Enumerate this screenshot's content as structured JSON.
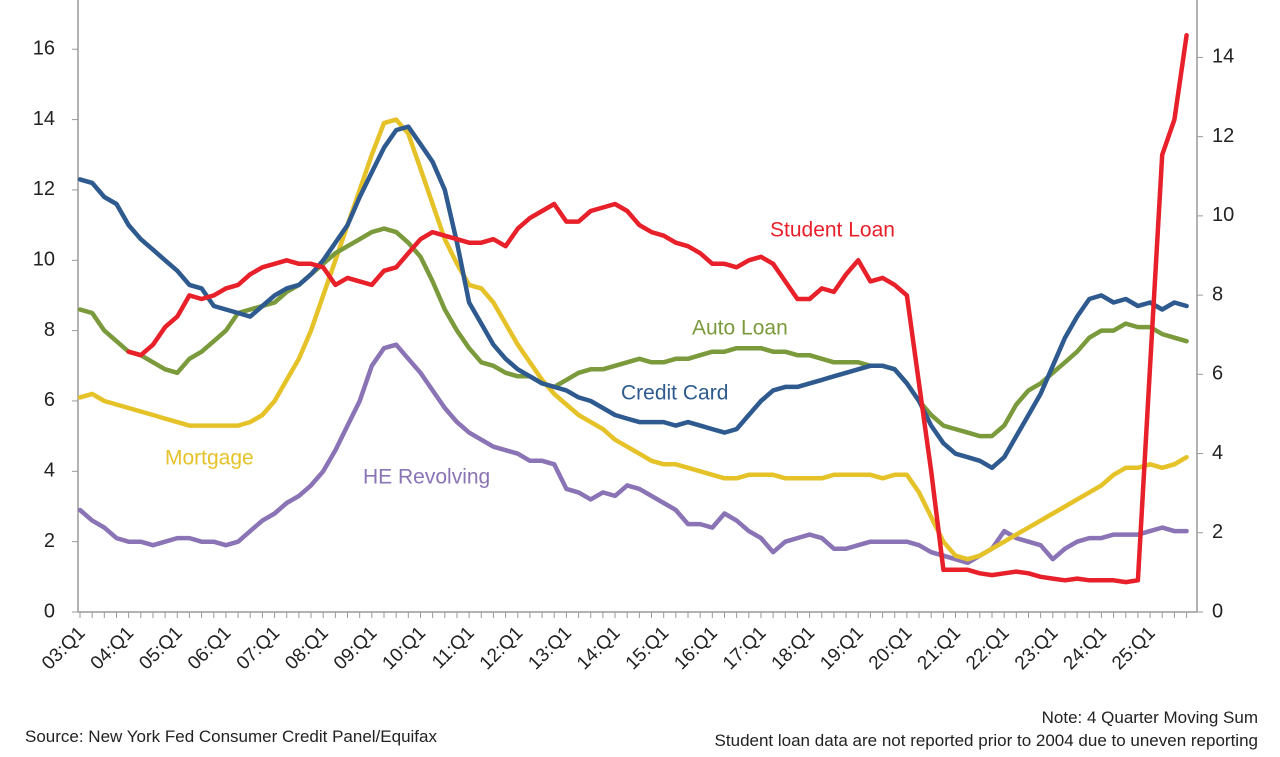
{
  "chart_data": {
    "type": "line",
    "categories": [
      "03:Q1",
      null,
      null,
      null,
      "04:Q1",
      null,
      null,
      null,
      "05:Q1",
      null,
      null,
      null,
      "06:Q1",
      null,
      null,
      null,
      "07:Q1",
      null,
      null,
      null,
      "08:Q1",
      null,
      null,
      null,
      "09:Q1",
      null,
      null,
      null,
      "10:Q1",
      null,
      null,
      null,
      "11:Q1",
      null,
      null,
      null,
      "12:Q1",
      null,
      null,
      null,
      "13:Q1",
      null,
      null,
      null,
      "14:Q1",
      null,
      null,
      null,
      "15:Q1",
      null,
      null,
      null,
      "16:Q1",
      null,
      null,
      null,
      "17:Q1",
      null,
      null,
      null,
      "18:Q1",
      null,
      null,
      null,
      "19:Q1",
      null,
      null,
      null,
      "20:Q1",
      null,
      null,
      null,
      "21:Q1",
      null,
      null,
      null,
      "22:Q1",
      null,
      null,
      null,
      "23:Q1",
      null,
      null,
      null,
      "24:Q1",
      null,
      null,
      null,
      "25:Q1",
      null,
      null,
      null
    ],
    "series": [
      {
        "name": "Student Loan",
        "color": "#e8202a",
        "values": [
          null,
          null,
          null,
          null,
          7.4,
          7.3,
          7.6,
          8.1,
          8.4,
          9.0,
          8.9,
          9.0,
          9.2,
          9.3,
          9.6,
          9.8,
          9.9,
          10.0,
          9.9,
          9.9,
          9.8,
          9.3,
          9.5,
          9.4,
          9.3,
          9.7,
          9.8,
          10.2,
          10.6,
          10.8,
          10.7,
          10.6,
          10.5,
          10.5,
          10.6,
          10.4,
          10.9,
          11.2,
          11.4,
          11.6,
          11.1,
          11.1,
          11.4,
          11.5,
          11.6,
          11.4,
          11.0,
          10.8,
          10.7,
          10.5,
          10.4,
          10.2,
          9.9,
          9.9,
          9.8,
          10.0,
          10.1,
          9.9,
          9.4,
          8.9,
          8.9,
          9.2,
          9.1,
          9.6,
          10.0,
          9.4,
          9.5,
          9.3,
          9.0,
          6.5,
          4.0,
          1.2,
          1.2,
          1.2,
          1.1,
          1.05,
          1.1,
          1.15,
          1.1,
          1.0,
          0.95,
          0.9,
          0.95,
          0.9,
          0.9,
          0.9,
          0.85,
          0.9,
          7.0,
          13.0,
          14.0,
          16.4
        ]
      },
      {
        "name": "Auto Loan",
        "color": "#7a9a3c",
        "values": [
          8.6,
          8.5,
          8.0,
          7.7,
          7.4,
          7.3,
          7.1,
          6.9,
          6.8,
          7.2,
          7.4,
          7.7,
          8.0,
          8.5,
          8.6,
          8.7,
          8.8,
          9.1,
          9.3,
          9.6,
          9.9,
          10.2,
          10.4,
          10.6,
          10.8,
          10.9,
          10.8,
          10.5,
          10.1,
          9.4,
          8.6,
          8.0,
          7.5,
          7.1,
          7.0,
          6.8,
          6.7,
          6.7,
          6.5,
          6.4,
          6.6,
          6.8,
          6.9,
          6.9,
          7.0,
          7.1,
          7.2,
          7.1,
          7.1,
          7.2,
          7.2,
          7.3,
          7.4,
          7.4,
          7.5,
          7.5,
          7.5,
          7.4,
          7.4,
          7.3,
          7.3,
          7.2,
          7.1,
          7.1,
          7.1,
          7.0,
          7.0,
          6.9,
          6.5,
          6.0,
          5.6,
          5.3,
          5.2,
          5.1,
          5.0,
          5.0,
          5.3,
          5.9,
          6.3,
          6.5,
          6.8,
          7.1,
          7.4,
          7.8,
          8.0,
          8.0,
          8.2,
          8.1,
          8.1,
          7.9,
          7.8,
          7.7
        ]
      },
      {
        "name": "Credit Card",
        "color": "#2e5a8f",
        "values": [
          12.3,
          12.2,
          11.8,
          11.6,
          11.0,
          10.6,
          10.3,
          10.0,
          9.7,
          9.3,
          9.2,
          8.7,
          8.6,
          8.5,
          8.4,
          8.7,
          9.0,
          9.2,
          9.3,
          9.6,
          10.0,
          10.5,
          11.0,
          11.8,
          12.5,
          13.2,
          13.7,
          13.8,
          13.3,
          12.8,
          12.0,
          10.5,
          8.8,
          8.2,
          7.6,
          7.2,
          6.9,
          6.7,
          6.5,
          6.4,
          6.3,
          6.1,
          6.0,
          5.8,
          5.6,
          5.5,
          5.4,
          5.4,
          5.4,
          5.3,
          5.4,
          5.3,
          5.2,
          5.1,
          5.2,
          5.6,
          6.0,
          6.3,
          6.4,
          6.4,
          6.5,
          6.6,
          6.7,
          6.8,
          6.9,
          7.0,
          7.0,
          6.9,
          6.5,
          6.0,
          5.3,
          4.8,
          4.5,
          4.4,
          4.3,
          4.1,
          4.4,
          5.0,
          5.6,
          6.2,
          7.0,
          7.8,
          8.4,
          8.9,
          9.0,
          8.8,
          8.9,
          8.7,
          8.8,
          8.6,
          8.8,
          8.7
        ]
      },
      {
        "name": "Mortgage",
        "color": "#e6c229",
        "values": [
          6.1,
          6.2,
          6.0,
          5.9,
          5.8,
          5.7,
          5.6,
          5.5,
          5.4,
          5.3,
          5.3,
          5.3,
          5.3,
          5.3,
          5.4,
          5.6,
          6.0,
          6.6,
          7.2,
          8.0,
          9.0,
          10.0,
          11.0,
          12.0,
          13.0,
          13.9,
          14.0,
          13.6,
          12.6,
          11.6,
          10.6,
          9.9,
          9.3,
          9.2,
          8.8,
          8.2,
          7.6,
          7.1,
          6.6,
          6.2,
          5.9,
          5.6,
          5.4,
          5.2,
          4.9,
          4.7,
          4.5,
          4.3,
          4.2,
          4.2,
          4.1,
          4.0,
          3.9,
          3.8,
          3.8,
          3.9,
          3.9,
          3.9,
          3.8,
          3.8,
          3.8,
          3.8,
          3.9,
          3.9,
          3.9,
          3.9,
          3.8,
          3.9,
          3.9,
          3.4,
          2.7,
          2.0,
          1.6,
          1.5,
          1.6,
          1.8,
          2.0,
          2.2,
          2.4,
          2.6,
          2.8,
          3.0,
          3.2,
          3.4,
          3.6,
          3.9,
          4.1,
          4.1,
          4.2,
          4.1,
          4.2,
          4.4
        ]
      },
      {
        "name": "HE Revolving",
        "color": "#8a74b5",
        "values": [
          2.9,
          2.6,
          2.4,
          2.1,
          2.0,
          2.0,
          1.9,
          2.0,
          2.1,
          2.1,
          2.0,
          2.0,
          1.9,
          2.0,
          2.3,
          2.6,
          2.8,
          3.1,
          3.3,
          3.6,
          4.0,
          4.6,
          5.3,
          6.0,
          7.0,
          7.5,
          7.6,
          7.2,
          6.8,
          6.3,
          5.8,
          5.4,
          5.1,
          4.9,
          4.7,
          4.6,
          4.5,
          4.3,
          4.3,
          4.2,
          3.5,
          3.4,
          3.2,
          3.4,
          3.3,
          3.6,
          3.5,
          3.3,
          3.1,
          2.9,
          2.5,
          2.5,
          2.4,
          2.8,
          2.6,
          2.3,
          2.1,
          1.7,
          2.0,
          2.1,
          2.2,
          2.1,
          1.8,
          1.8,
          1.9,
          2.0,
          2.0,
          2.0,
          2.0,
          1.9,
          1.7,
          1.6,
          1.5,
          1.4,
          1.6,
          1.8,
          2.3,
          2.1,
          2.0,
          1.9,
          1.5,
          1.8,
          2.0,
          2.1,
          2.1,
          2.2,
          2.2,
          2.2,
          2.3,
          2.4,
          2.3,
          2.3
        ]
      }
    ],
    "ylim": [
      0,
      17.4
    ],
    "yticks": [
      0,
      2,
      4,
      6,
      8,
      10,
      12,
      14,
      16
    ],
    "y2lim": [
      0,
      15.45
    ],
    "y2ticks": [
      0,
      2,
      4,
      6,
      8,
      10,
      12,
      14
    ],
    "source": "Source: New York Fed Consumer Credit Panel/Equifax",
    "notes": [
      "Note: 4 Quarter Moving Sum",
      "Student loan data are not reported prior to 2004 due to uneven reporting"
    ]
  }
}
